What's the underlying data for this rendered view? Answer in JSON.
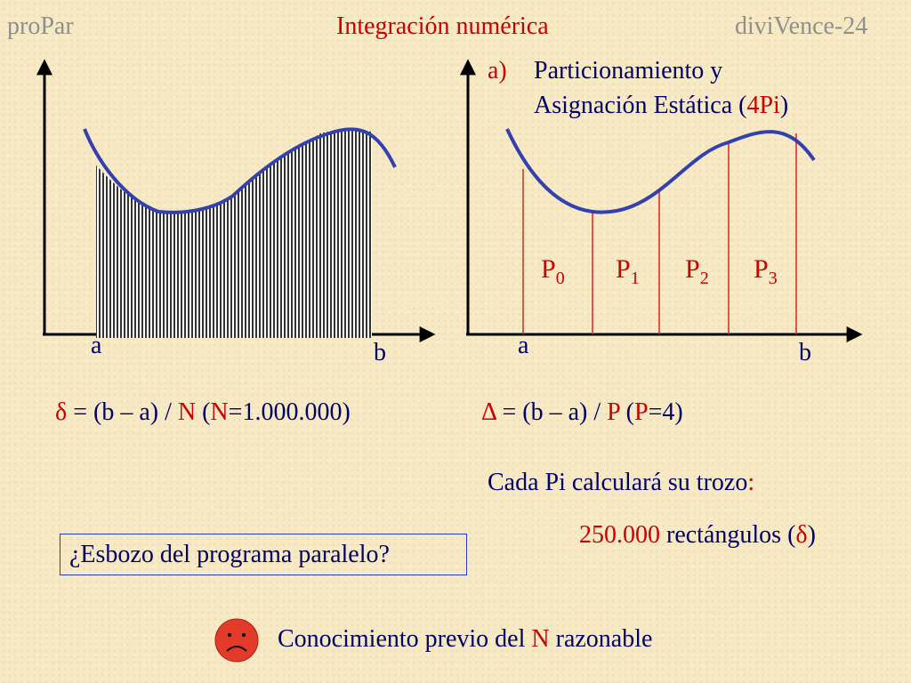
{
  "header": {
    "left": "proPar",
    "center": "Integración numérica",
    "right": "diviVence-24"
  },
  "right_panel": {
    "item_letter": "a)",
    "title_line1": "Particionamiento y",
    "title_line2_a": "Asignación Estática (",
    "title_line2_b": "4Pi",
    "title_line2_c": ")"
  },
  "partitions": [
    {
      "label": "P",
      "sub": "0"
    },
    {
      "label": "P",
      "sub": "1"
    },
    {
      "label": "P",
      "sub": "2"
    },
    {
      "label": "P",
      "sub": "3"
    }
  ],
  "axis_labels": {
    "a": "a",
    "b": "b"
  },
  "formula_left": {
    "delta": "δ",
    "eq": " = (b – a) / ",
    "n": "N",
    "paren_open": "   (",
    "n2": "N",
    "value": "=1.000.000)"
  },
  "formula_right": {
    "delta": "Δ",
    "eq": " = (b – a) / ",
    "p": "P",
    "paren_open": "   (",
    "p2": "P",
    "value": "=4)"
  },
  "cada": {
    "text": "Cada Pi calculará su trozo",
    "colon": ":"
  },
  "rects": {
    "count": "250.000",
    "word": " rectángulos (",
    "delta": "δ",
    "close": ")"
  },
  "question_box": "¿Esbozo del programa paralelo?",
  "bottom": {
    "a": "Conocimiento previo del ",
    "n": "N",
    "b": " razonable"
  }
}
